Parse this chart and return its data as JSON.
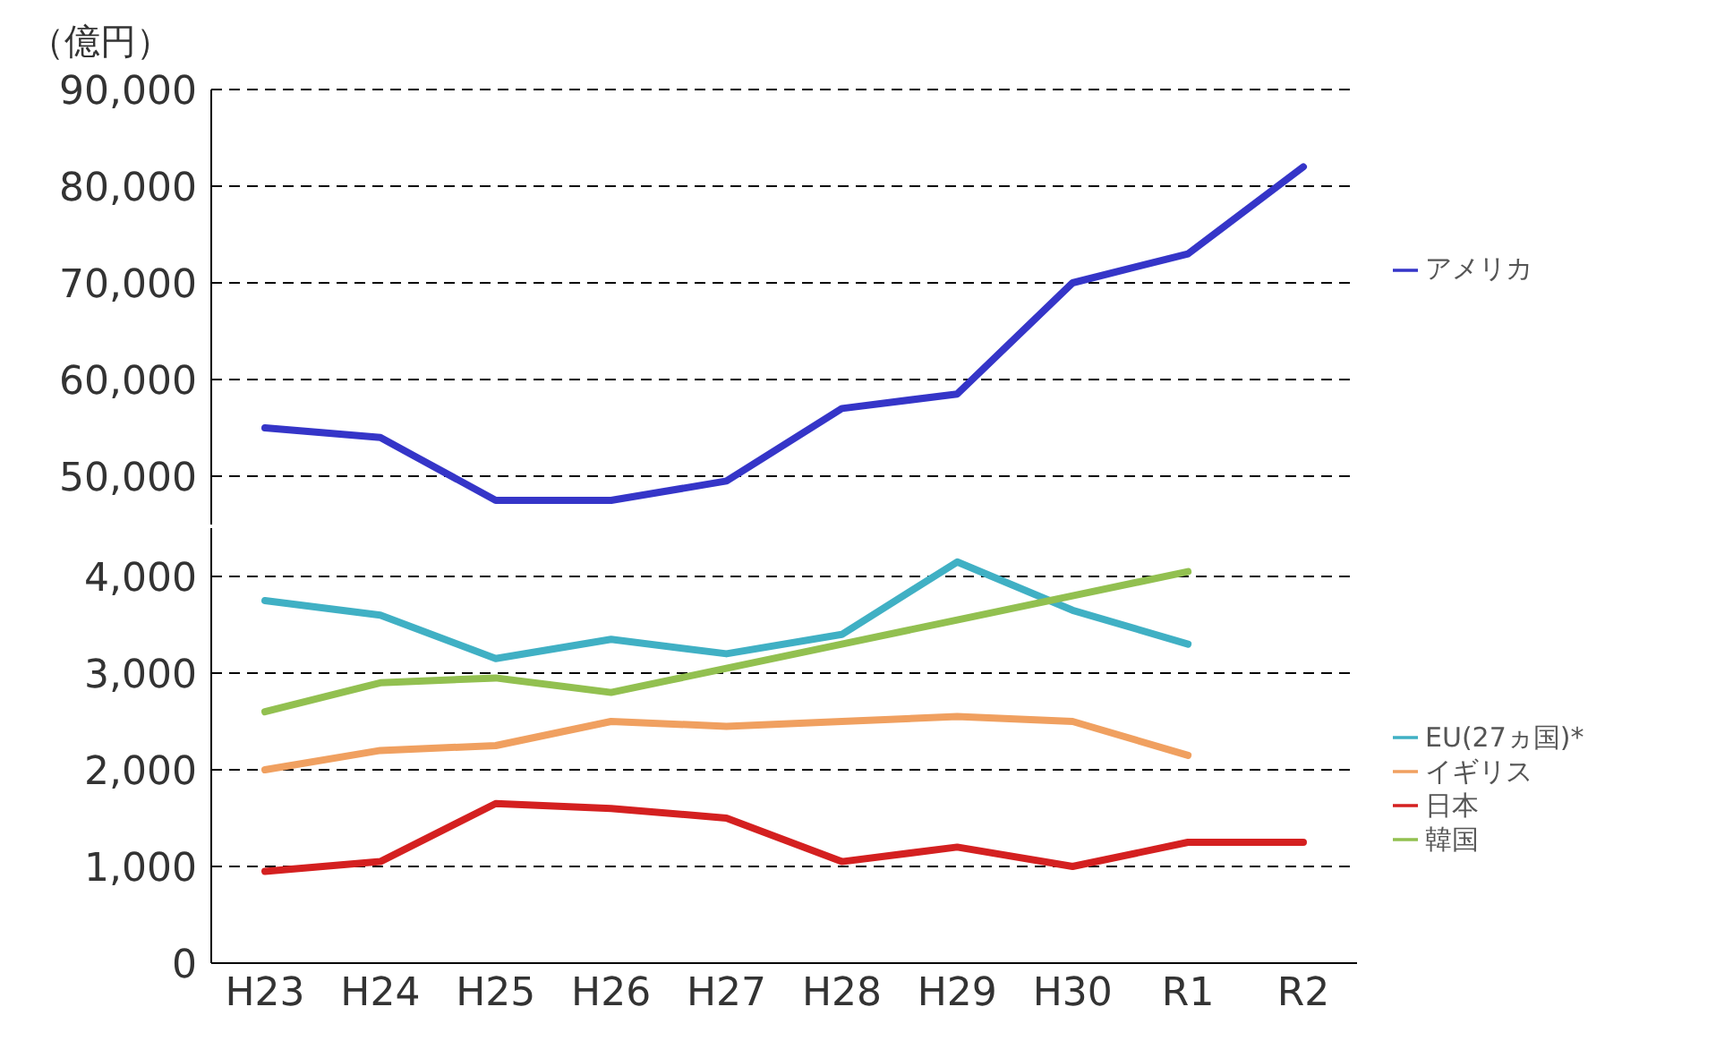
{
  "chart_data": [
    {
      "type": "line",
      "ylabel": "（億円）",
      "categories": [
        null,
        null,
        null,
        null,
        null,
        null,
        null,
        null,
        null,
        null
      ],
      "ylim": [
        45000,
        90000
      ],
      "yticks": [
        {
          "value": 50000,
          "label": "50,000"
        },
        {
          "value": 60000,
          "label": "60,000"
        },
        {
          "value": 70000,
          "label": "70,000"
        },
        {
          "value": 80000,
          "label": "80,000"
        },
        {
          "value": 90000,
          "label": "90,000"
        }
      ],
      "grid": "y",
      "legend": "right",
      "tick_labels": "y",
      "marker": "none",
      "line_style": "solid",
      "series": [
        {
          "name": "アメリカ",
          "color": "#3535c8",
          "values": [
            55000,
            54000,
            47500,
            47500,
            49500,
            57000,
            58500,
            70000,
            73000,
            82000
          ]
        }
      ]
    },
    {
      "type": "line",
      "categories": [
        "H23",
        "H24",
        "H25",
        "H26",
        "H27",
        "H28",
        "H29",
        "H30",
        "R1",
        "R2"
      ],
      "ylim": [
        0,
        4500
      ],
      "yticks": [
        0,
        {
          "value": 1000,
          "label": "1,000"
        },
        {
          "value": 2000,
          "label": "2,000"
        },
        {
          "value": 3000,
          "label": "3,000"
        },
        {
          "value": 4000,
          "label": "4,000"
        }
      ],
      "grid": "y",
      "legend": "right",
      "marker": "none",
      "line_style": "solid",
      "series": [
        {
          "name": "EU(27ヵ国)*",
          "color": "#40b0c4",
          "values": [
            3750,
            3600,
            3150,
            3350,
            3200,
            3400,
            4150,
            3650,
            3300,
            null
          ]
        },
        {
          "name": "イギリス",
          "color": "#f0a060",
          "values": [
            2000,
            2200,
            2250,
            2500,
            2450,
            2500,
            2550,
            2500,
            2150,
            null
          ]
        },
        {
          "name": "韓国",
          "color": "#92c050",
          "values": [
            2600,
            2900,
            2950,
            2800,
            3050,
            3300,
            3550,
            3800,
            4050,
            null
          ]
        },
        {
          "name": "日本",
          "color": "#d42020",
          "values": [
            950,
            1050,
            1650,
            1600,
            1500,
            1050,
            1200,
            1000,
            1250,
            1250
          ]
        }
      ]
    }
  ]
}
